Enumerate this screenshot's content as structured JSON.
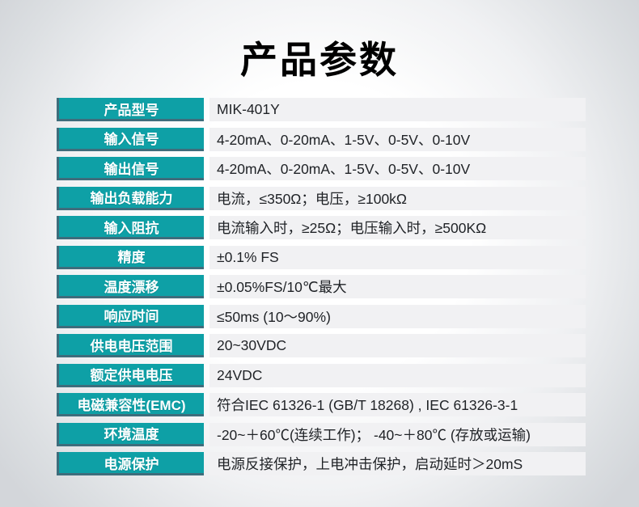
{
  "page": {
    "title": "产品参数"
  },
  "colors": {
    "label_bg": "#0ea0a6",
    "label_edge": "#3e6d7c",
    "label_text": "#ffffff",
    "value_bg": "#f1f1f3",
    "value_text": "#1f2226",
    "background_edge": "#d3d6da",
    "background_center": "#ffffff"
  },
  "table": {
    "rows": [
      {
        "label": "产品型号",
        "value": "MIK-401Y"
      },
      {
        "label": "输入信号",
        "value": "4-20mA、0-20mA、1-5V、0-5V、0-10V"
      },
      {
        "label": "输出信号",
        "value": "4-20mA、0-20mA、1-5V、0-5V、0-10V"
      },
      {
        "label": "输出负载能力",
        "value": "电流，≤350Ω；电压，≥100kΩ"
      },
      {
        "label": "输入阻抗",
        "value": "电流输入时，≥25Ω；电压输入时，≥500KΩ"
      },
      {
        "label": "精度",
        "value": "±0.1% FS"
      },
      {
        "label": "温度漂移",
        "value": "±0.05%FS/10℃最大"
      },
      {
        "label": "响应时间",
        "value": "≤50ms (10～90%)"
      },
      {
        "label": "供电电压范围",
        "value": "20~30VDC"
      },
      {
        "label": "额定供电电压",
        "value": "24VDC"
      },
      {
        "label": "电磁兼容性(EMC)",
        "value": "符合IEC 61326-1 (GB/T 18268) , IEC 61326-3-1"
      },
      {
        "label": "环境温度",
        "value": "-20~＋60℃(连续工作)； -40~＋80℃ (存放或运输)"
      },
      {
        "label": "电源保护",
        "value": "电源反接保护，上电冲击保护，启动延时＞20mS"
      }
    ]
  }
}
